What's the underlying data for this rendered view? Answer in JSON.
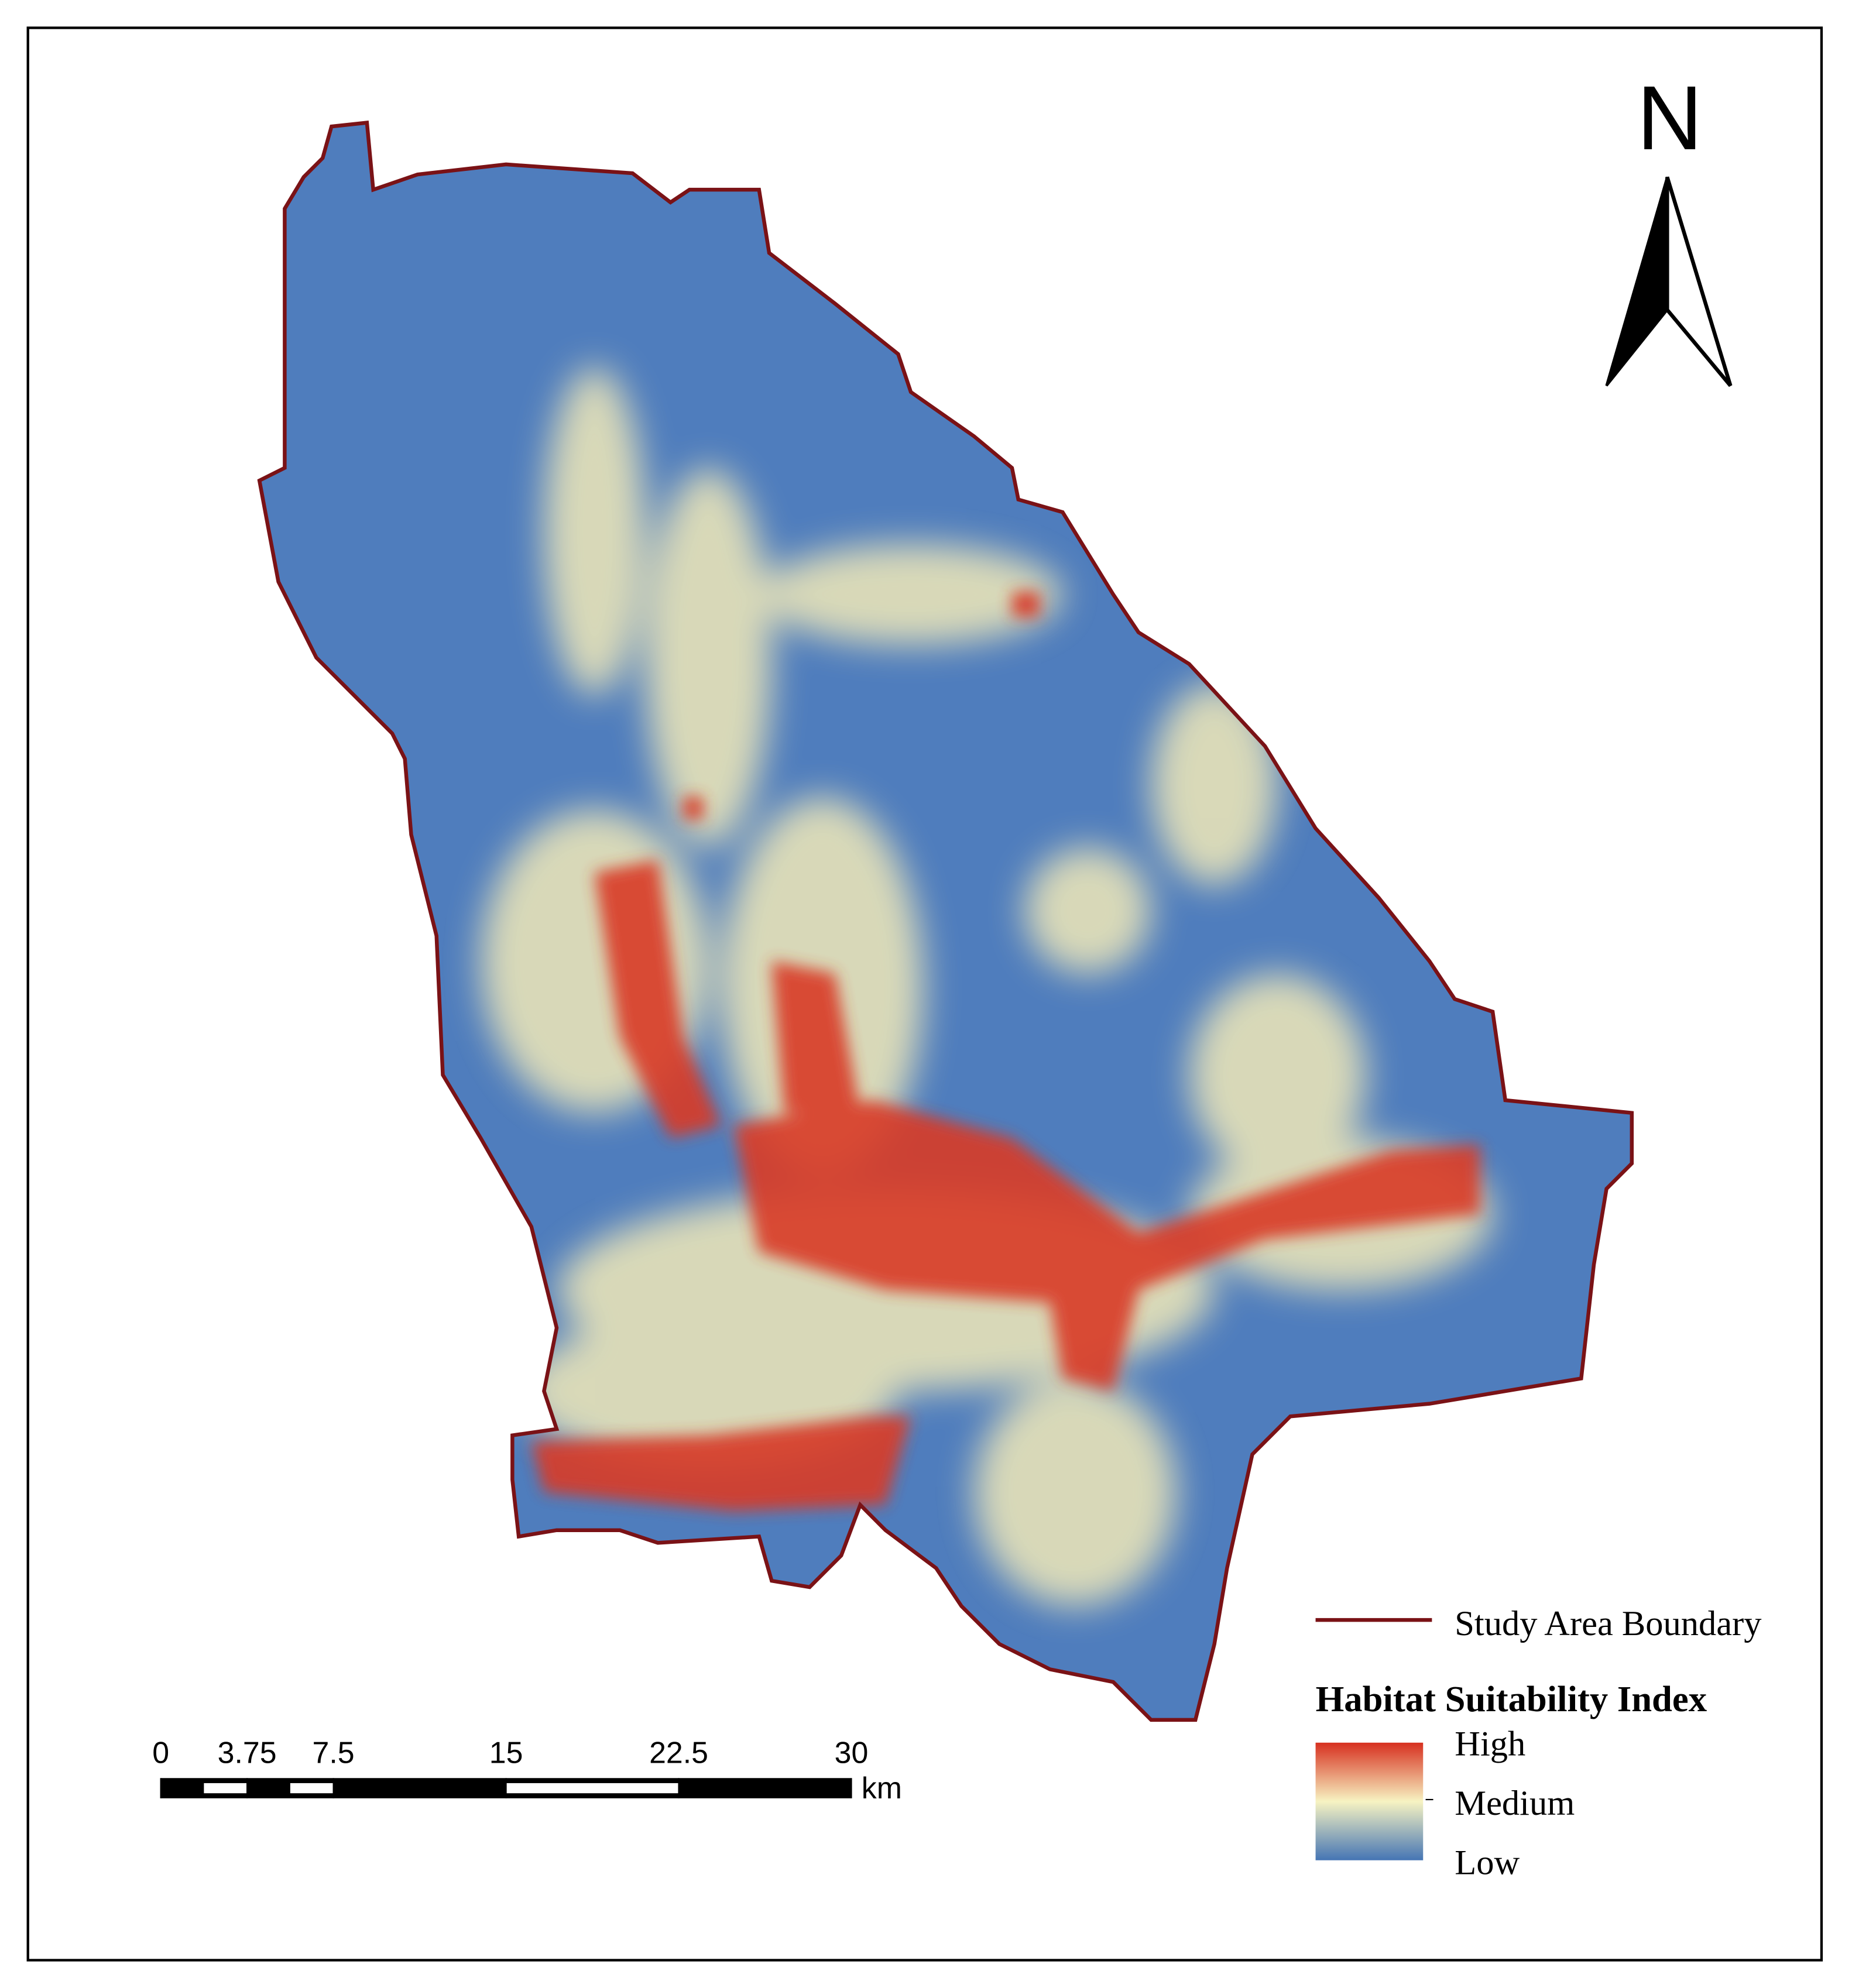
{
  "north_arrow": {
    "label": "N"
  },
  "scale_bar": {
    "ticks": [
      0,
      3.75,
      7.5,
      15,
      22.5,
      30
    ],
    "unit": "km"
  },
  "legend": {
    "boundary": "Study Area Boundary",
    "title": "Habitat Suitability Index",
    "levels": [
      "High",
      "Medium",
      "Low"
    ]
  }
}
